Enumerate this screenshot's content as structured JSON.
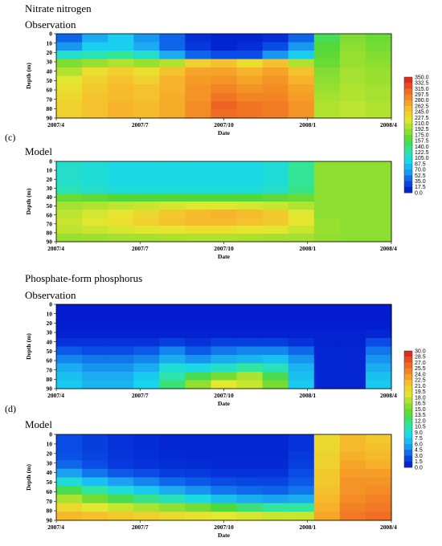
{
  "sections": [
    {
      "title": "Nitrate nitrogen",
      "label": "(c)"
    },
    {
      "title": "Phosphate-form phosphorus",
      "label": "(d)"
    }
  ],
  "colormap": [
    "#0010c8",
    "#0a50e6",
    "#1aa0f2",
    "#19d8ee",
    "#30e6a0",
    "#50d838",
    "#9ae030",
    "#e6e830",
    "#f6bc2c",
    "#f48a24",
    "#ec5624",
    "#d81e1e"
  ],
  "chart_data": [
    {
      "type": "heatmap",
      "panel": "Observation",
      "variable": "Nitrate nitrogen",
      "x_ticks": [
        "2007/4",
        "2007/7",
        "2007/10",
        "2008/1",
        "2008/4"
      ],
      "y_ticks": [
        0,
        10,
        20,
        30,
        40,
        50,
        60,
        70,
        80,
        90
      ],
      "xlabel": "Date",
      "ylabel": "Depth (m)",
      "ylim": [
        90,
        0
      ],
      "colorbar_levels": [
        "350.0",
        "332.5",
        "315.0",
        "297.5",
        "280.0",
        "262.5",
        "245.0",
        "227.5",
        "210.0",
        "192.5",
        "175.0",
        "157.5",
        "140.0",
        "122.5",
        "105.0",
        "87.5",
        "70.0",
        "52.5",
        "35.0",
        "17.5",
        "0.0"
      ],
      "colorbar_range": [
        0,
        350
      ],
      "dates": [
        "2007/4",
        "2007/5",
        "2007/6",
        "2007/7",
        "2007/8",
        "2007/9",
        "2007/10",
        "2007/11",
        "2007/12",
        "2008/1",
        "2008/2",
        "2008/3",
        "2008/4"
      ],
      "depths": [
        0,
        10,
        20,
        30,
        40,
        50,
        60,
        70,
        80,
        90
      ],
      "values": [
        [
          40,
          70,
          90,
          60,
          40,
          15,
          10,
          10,
          15,
          40,
          150,
          180,
          170
        ],
        [
          60,
          90,
          90,
          70,
          40,
          20,
          10,
          15,
          30,
          60,
          160,
          185,
          175
        ],
        [
          110,
          120,
          130,
          110,
          70,
          40,
          30,
          30,
          60,
          90,
          165,
          190,
          180
        ],
        [
          180,
          190,
          200,
          190,
          200,
          240,
          250,
          230,
          250,
          200,
          170,
          190,
          185
        ],
        [
          200,
          230,
          240,
          230,
          250,
          270,
          270,
          260,
          270,
          250,
          180,
          195,
          190
        ],
        [
          220,
          240,
          250,
          240,
          260,
          275,
          280,
          270,
          280,
          260,
          185,
          195,
          190
        ],
        [
          230,
          245,
          255,
          250,
          260,
          280,
          290,
          280,
          285,
          270,
          190,
          200,
          195
        ],
        [
          235,
          250,
          255,
          250,
          265,
          280,
          300,
          290,
          290,
          275,
          195,
          200,
          195
        ],
        [
          240,
          250,
          260,
          255,
          265,
          285,
          310,
          300,
          295,
          280,
          200,
          205,
          200
        ],
        [
          240,
          250,
          260,
          255,
          265,
          285,
          305,
          300,
          295,
          280,
          200,
          205,
          200
        ]
      ]
    },
    {
      "type": "heatmap",
      "panel": "Model",
      "variable": "Nitrate nitrogen",
      "x_ticks": [
        "2007/4",
        "2007/7",
        "2007/10",
        "2008/1",
        "2008/4"
      ],
      "y_ticks": [
        0,
        10,
        20,
        30,
        40,
        50,
        60,
        70,
        80,
        90
      ],
      "xlabel": "Date",
      "ylabel": "Depth (m)",
      "ylim": [
        90,
        0
      ],
      "dates": [
        "2007/4",
        "2007/5",
        "2007/6",
        "2007/7",
        "2007/8",
        "2007/9",
        "2007/10",
        "2007/11",
        "2007/12",
        "2008/1",
        "2008/2",
        "2008/3",
        "2008/4"
      ],
      "depths": [
        0,
        10,
        20,
        30,
        40,
        50,
        60,
        70,
        80,
        90
      ],
      "values": [
        [
          110,
          105,
          100,
          100,
          100,
          100,
          100,
          100,
          105,
          130,
          185,
          185,
          185
        ],
        [
          110,
          105,
          100,
          100,
          100,
          100,
          100,
          100,
          105,
          130,
          185,
          185,
          185
        ],
        [
          110,
          105,
          100,
          100,
          100,
          100,
          100,
          100,
          105,
          130,
          185,
          185,
          185
        ],
        [
          120,
          110,
          105,
          105,
          105,
          105,
          105,
          105,
          110,
          135,
          185,
          185,
          185
        ],
        [
          170,
          165,
          160,
          160,
          160,
          160,
          160,
          160,
          165,
          170,
          185,
          185,
          185
        ],
        [
          195,
          200,
          205,
          210,
          215,
          220,
          220,
          215,
          210,
          200,
          185,
          185,
          185
        ],
        [
          205,
          215,
          225,
          235,
          245,
          255,
          260,
          255,
          245,
          220,
          185,
          185,
          185
        ],
        [
          210,
          220,
          230,
          240,
          250,
          255,
          255,
          250,
          245,
          225,
          190,
          185,
          185
        ],
        [
          205,
          210,
          215,
          220,
          225,
          230,
          230,
          225,
          220,
          210,
          190,
          185,
          185
        ],
        [
          190,
          192,
          195,
          195,
          198,
          200,
          200,
          198,
          196,
          195,
          188,
          185,
          185
        ]
      ]
    },
    {
      "type": "heatmap",
      "panel": "Observation",
      "variable": "Phosphate-form phosphorus",
      "x_ticks": [
        "2007/4",
        "2007/7",
        "2007/10",
        "2008/1",
        "2008/4"
      ],
      "y_ticks": [
        0,
        10,
        20,
        30,
        40,
        50,
        60,
        70,
        80,
        90
      ],
      "xlabel": "Date",
      "ylabel": "Depth (m)",
      "ylim": [
        90,
        0
      ],
      "colorbar_levels": [
        "30.0",
        "28.5",
        "27.0",
        "25.5",
        "24.0",
        "22.5",
        "21.0",
        "19.5",
        "18.0",
        "16.5",
        "15.0",
        "13.5",
        "12.0",
        "10.5",
        "9.0",
        "7.5",
        "6.0",
        "4.5",
        "3.0",
        "1.5",
        "0.0"
      ],
      "colorbar_range": [
        0,
        30
      ],
      "dates": [
        "2007/4",
        "2007/5",
        "2007/6",
        "2007/7",
        "2007/8",
        "2007/9",
        "2007/10",
        "2007/11",
        "2007/12",
        "2008/1",
        "2008/2",
        "2008/3",
        "2008/4"
      ],
      "depths": [
        0,
        10,
        20,
        30,
        40,
        50,
        60,
        70,
        80,
        90
      ],
      "values": [
        [
          0.5,
          0.5,
          0.5,
          0.5,
          0.5,
          0.5,
          0.5,
          0.5,
          0.5,
          0.5,
          0.5,
          0.5,
          0.5
        ],
        [
          0.5,
          0.5,
          0.5,
          0.5,
          0.5,
          0.5,
          0.5,
          0.5,
          0.5,
          0.5,
          0.5,
          0.5,
          0.5
        ],
        [
          0.6,
          0.6,
          0.6,
          0.6,
          0.6,
          0.6,
          0.6,
          0.6,
          0.6,
          0.6,
          0.6,
          0.6,
          0.6
        ],
        [
          0.8,
          0.8,
          0.8,
          0.8,
          0.8,
          0.8,
          0.8,
          0.8,
          0.8,
          0.8,
          0.8,
          0.8,
          1.0
        ],
        [
          1.5,
          1.5,
          1.5,
          1.5,
          2.0,
          1.5,
          2.0,
          2.0,
          2.0,
          1.5,
          0.8,
          0.8,
          2.5
        ],
        [
          3.0,
          2.5,
          2.5,
          3.0,
          4.5,
          3.0,
          4.0,
          4.5,
          4.5,
          3.5,
          1.0,
          1.0,
          4.0
        ],
        [
          4.5,
          4.0,
          4.0,
          4.5,
          6.0,
          5.0,
          6.0,
          6.5,
          7.0,
          5.0,
          1.0,
          1.0,
          5.0
        ],
        [
          6.0,
          5.0,
          5.0,
          6.0,
          9.0,
          8.5,
          9.5,
          11.0,
          10.0,
          6.5,
          1.0,
          1.0,
          6.0
        ],
        [
          7.0,
          6.0,
          6.0,
          7.5,
          10.5,
          13.0,
          15.0,
          17.0,
          13.0,
          7.0,
          1.0,
          1.0,
          7.0
        ],
        [
          7.5,
          6.5,
          6.5,
          8.0,
          12.0,
          16.0,
          19.0,
          18.0,
          15.0,
          7.5,
          1.0,
          1.0,
          7.5
        ]
      ]
    },
    {
      "type": "heatmap",
      "panel": "Model",
      "variable": "Phosphate-form phosphorus",
      "x_ticks": [
        "2007/4",
        "2007/7",
        "2007/10",
        "2008/1",
        "2008/4"
      ],
      "y_ticks": [
        0,
        10,
        20,
        30,
        40,
        50,
        60,
        70,
        80,
        90
      ],
      "xlabel": "Date",
      "ylabel": "Depth (m)",
      "ylim": [
        90,
        0
      ],
      "dates": [
        "2007/4",
        "2007/5",
        "2007/6",
        "2007/7",
        "2007/8",
        "2007/9",
        "2007/10",
        "2007/11",
        "2007/12",
        "2008/1",
        "2008/2",
        "2008/3",
        "2008/4"
      ],
      "depths": [
        0,
        10,
        20,
        30,
        40,
        50,
        60,
        70,
        80,
        90
      ],
      "values": [
        [
          2.5,
          2.0,
          1.5,
          1.2,
          1.0,
          1.0,
          1.0,
          1.0,
          1.0,
          1.5,
          20.0,
          22.0,
          21.0
        ],
        [
          2.5,
          2.0,
          1.5,
          1.2,
          1.0,
          1.0,
          1.0,
          1.0,
          1.0,
          1.5,
          20.0,
          22.0,
          21.5
        ],
        [
          2.8,
          2.2,
          1.6,
          1.3,
          1.1,
          1.0,
          1.0,
          1.0,
          1.0,
          1.8,
          20.5,
          22.5,
          22.0
        ],
        [
          3.5,
          2.6,
          1.8,
          1.5,
          1.3,
          1.2,
          1.1,
          1.1,
          1.1,
          2.0,
          20.5,
          23.0,
          22.5
        ],
        [
          5.5,
          4.0,
          3.0,
          2.5,
          2.0,
          1.8,
          1.5,
          1.5,
          1.5,
          2.5,
          21.0,
          23.5,
          23.5
        ],
        [
          9.0,
          7.0,
          5.5,
          4.5,
          3.5,
          3.0,
          2.5,
          2.3,
          2.2,
          3.0,
          21.0,
          24.0,
          24.0
        ],
        [
          13.0,
          11.0,
          9.0,
          7.5,
          6.0,
          5.0,
          4.0,
          3.5,
          3.3,
          4.0,
          21.5,
          24.0,
          24.5
        ],
        [
          17.0,
          15.0,
          13.0,
          11.5,
          10.0,
          8.5,
          7.0,
          6.0,
          5.5,
          6.0,
          22.0,
          24.5,
          25.0
        ],
        [
          20.0,
          19.0,
          18.0,
          17.0,
          16.0,
          15.0,
          13.5,
          12.0,
          11.0,
          11.0,
          22.5,
          25.0,
          25.5
        ],
        [
          22.0,
          21.5,
          21.0,
          20.5,
          20.0,
          19.5,
          19.0,
          18.5,
          18.0,
          18.0,
          23.0,
          25.5,
          26.0
        ]
      ]
    }
  ]
}
